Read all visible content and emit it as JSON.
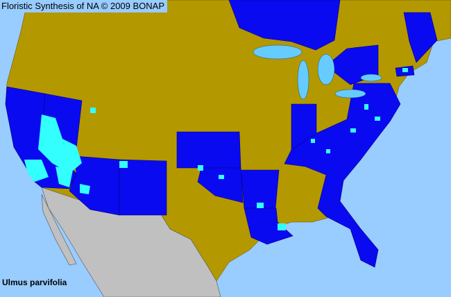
{
  "header": {
    "title": "Floristic Synthesis of NA © 2009 BONAP"
  },
  "species": {
    "name": "Ulmus parvifolia"
  },
  "colors": {
    "ocean": "#99ccff",
    "present_county": "#00ffff",
    "present_state": "#0000ff",
    "absent_state": "#b39800",
    "outside_range": "#c0c0c0",
    "lakes": "#66ccff"
  }
}
